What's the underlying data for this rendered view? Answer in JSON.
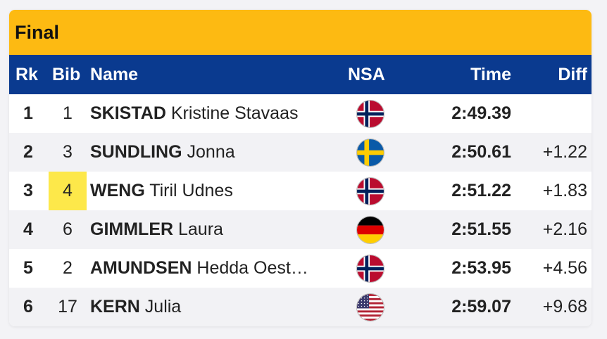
{
  "title": "Final",
  "columns": {
    "rank": "Rk",
    "bib": "Bib",
    "name": "Name",
    "nsa": "NSA",
    "time": "Time",
    "diff": "Diff"
  },
  "rows": [
    {
      "rank": "1",
      "bib": "1",
      "surname": "SKISTAD",
      "firstname": "Kristine Stavaas",
      "nsa_icon": "norway-flag-icon",
      "time": "2:49.39",
      "diff": ""
    },
    {
      "rank": "2",
      "bib": "3",
      "surname": "SUNDLING",
      "firstname": "Jonna",
      "nsa_icon": "sweden-flag-icon",
      "time": "2:50.61",
      "diff": "+1.22"
    },
    {
      "rank": "3",
      "bib": "4",
      "surname": "WENG",
      "firstname": "Tiril Udnes",
      "nsa_icon": "norway-flag-icon",
      "time": "2:51.22",
      "diff": "+1.83",
      "bib_highlight": true
    },
    {
      "rank": "4",
      "bib": "6",
      "surname": "GIMMLER",
      "firstname": "Laura",
      "nsa_icon": "germany-flag-icon",
      "time": "2:51.55",
      "diff": "+2.16"
    },
    {
      "rank": "5",
      "bib": "2",
      "surname": "AMUNDSEN",
      "firstname": "Hedda Oest…",
      "nsa_icon": "norway-flag-icon",
      "time": "2:53.95",
      "diff": "+4.56"
    },
    {
      "rank": "6",
      "bib": "17",
      "surname": "KERN",
      "firstname": "Julia",
      "nsa_icon": "usa-flag-icon",
      "time": "2:59.07",
      "diff": "+9.68"
    }
  ],
  "colors": {
    "title_bar": "#fdba12",
    "header": "#0a3a8f",
    "bib_highlight": "#fde84a",
    "row_alt": "#f2f2f5"
  }
}
